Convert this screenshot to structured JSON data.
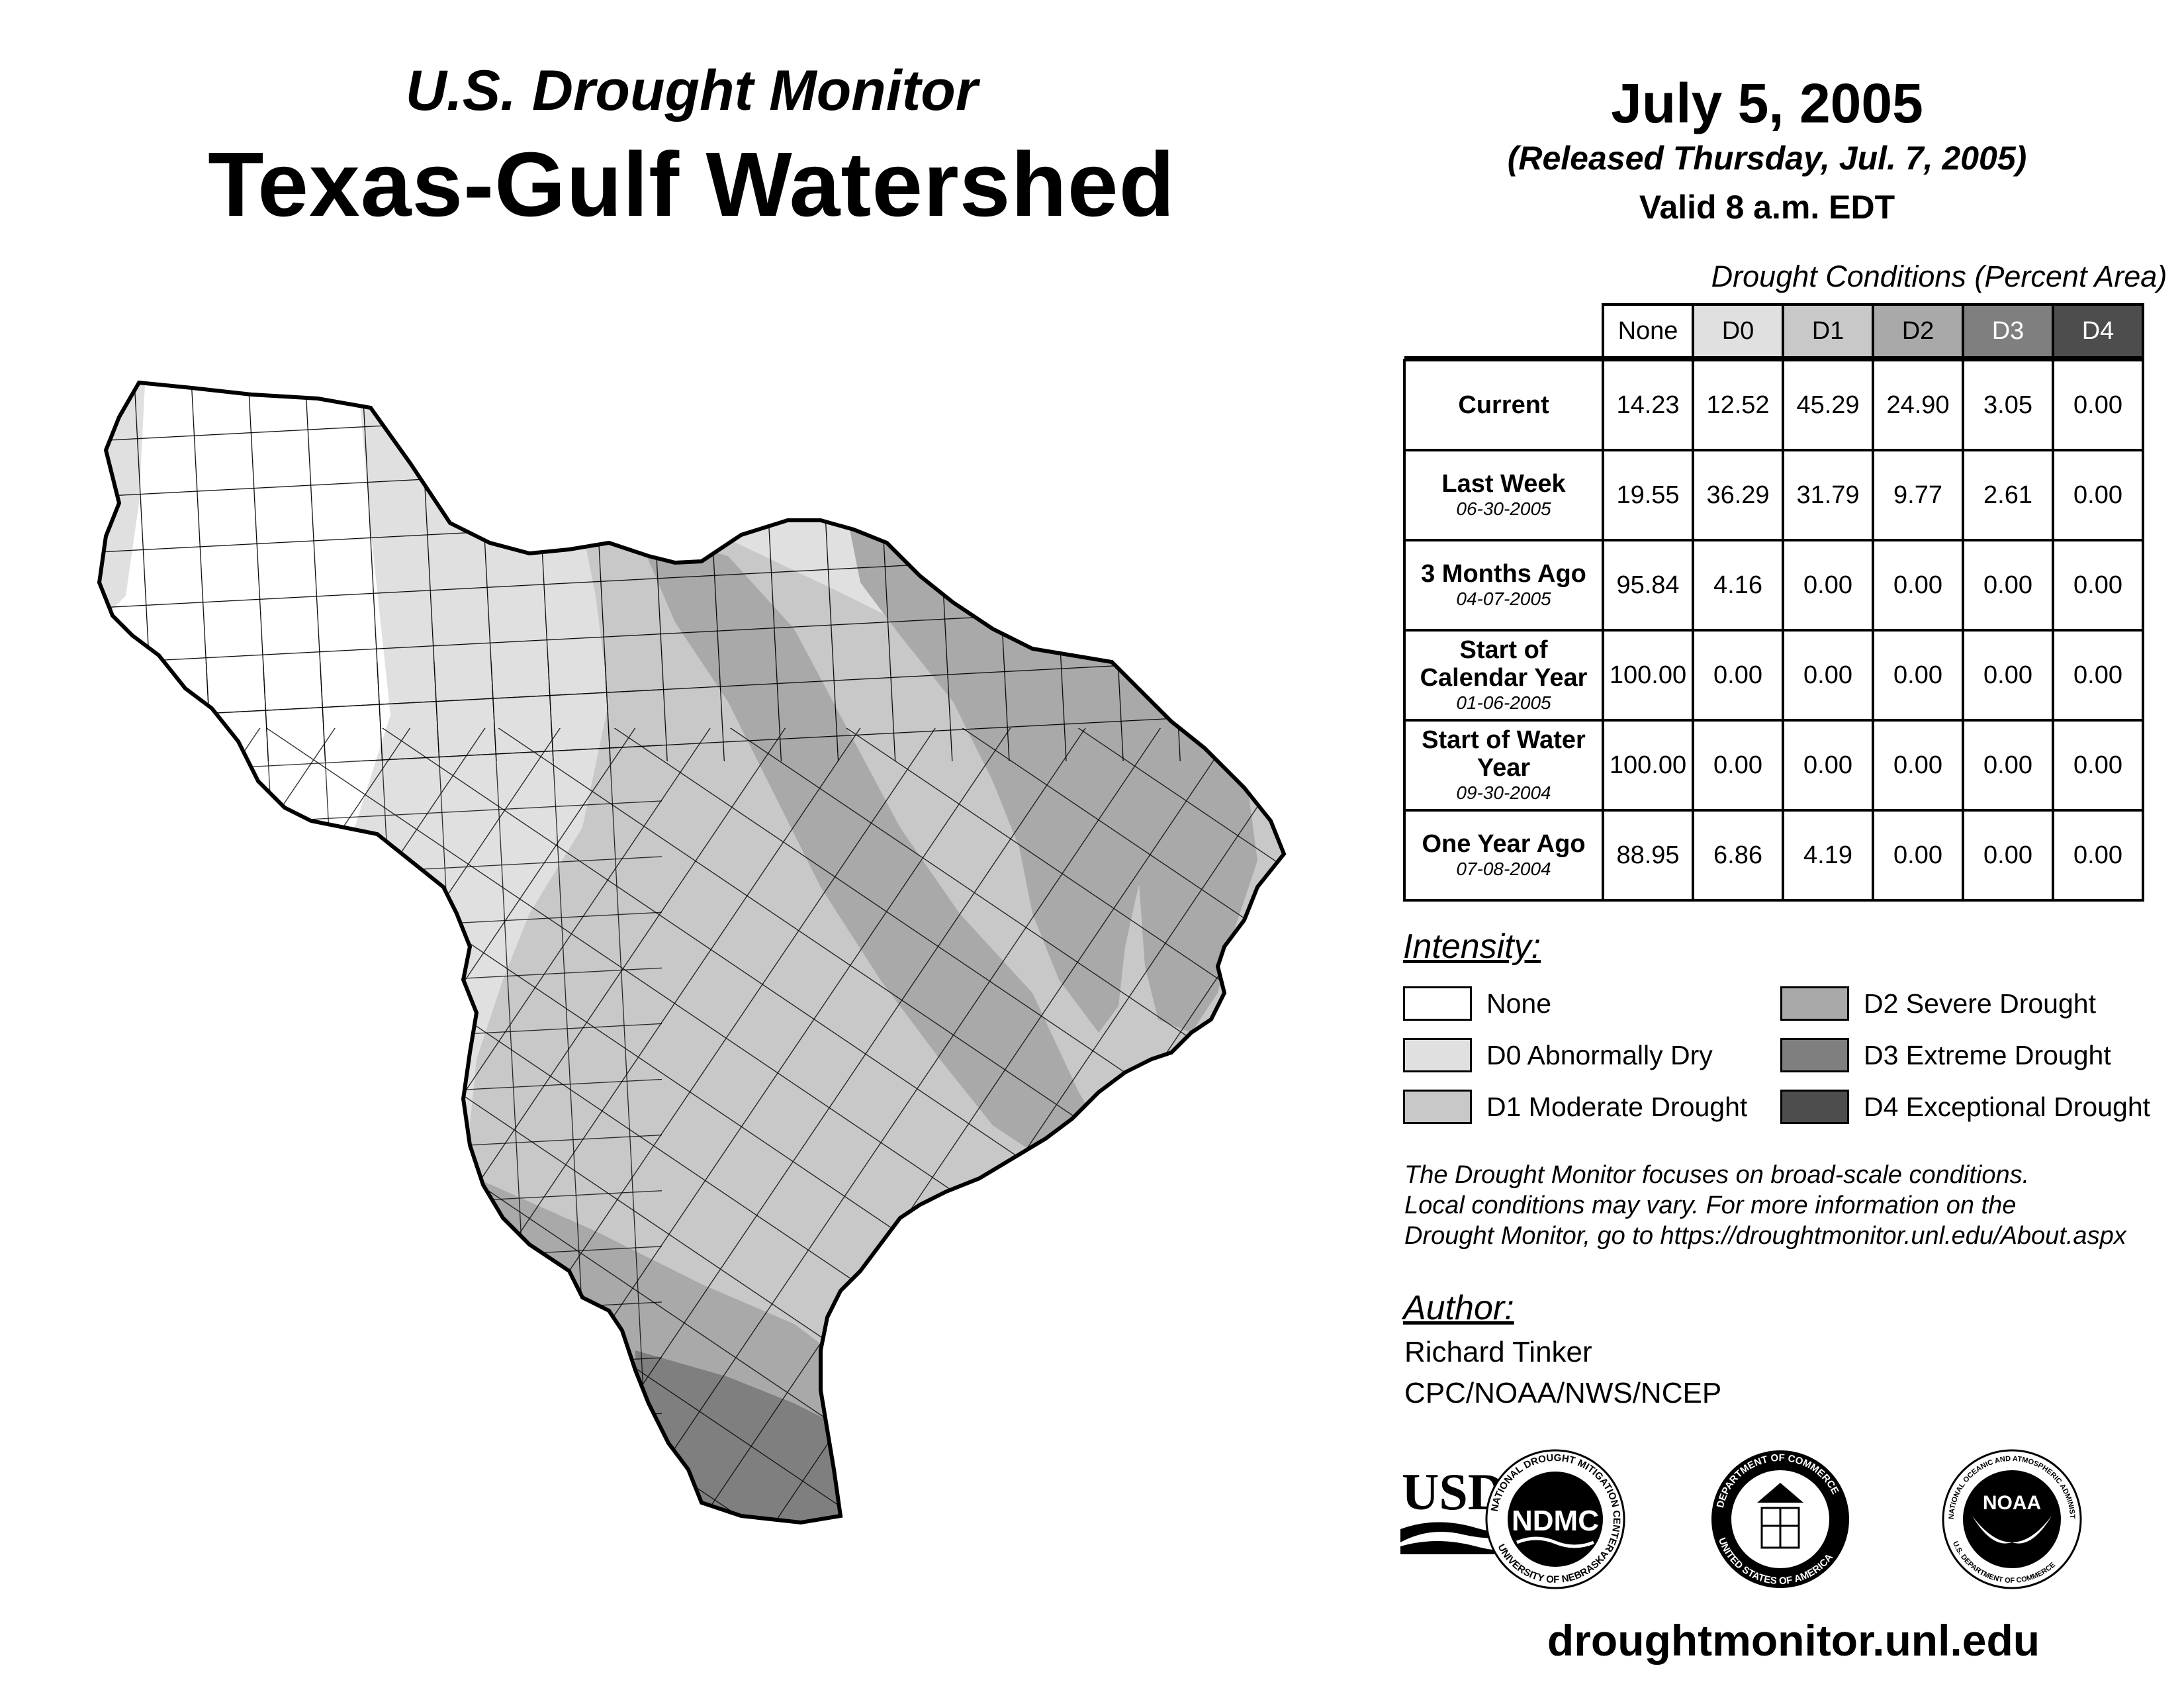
{
  "header": {
    "supertitle": "U.S. Drought Monitor",
    "title": "Texas-Gulf Watershed",
    "date": "July 5, 2005",
    "released": "(Released Thursday, Jul. 7, 2005)",
    "valid": "Valid 8 a.m. EDT"
  },
  "table": {
    "caption": "Drought Conditions (Percent Area)",
    "columns": [
      "None",
      "D0",
      "D1",
      "D2",
      "D3",
      "D4"
    ],
    "rows": [
      {
        "label": "Current",
        "date": "",
        "values": [
          "14.23",
          "12.52",
          "45.29",
          "24.90",
          "3.05",
          "0.00"
        ]
      },
      {
        "label": "Last Week",
        "date": "06-30-2005",
        "values": [
          "19.55",
          "36.29",
          "31.79",
          "9.77",
          "2.61",
          "0.00"
        ]
      },
      {
        "label": "3 Months Ago",
        "date": "04-07-2005",
        "values": [
          "95.84",
          "4.16",
          "0.00",
          "0.00",
          "0.00",
          "0.00"
        ]
      },
      {
        "label": "Start of Calendar Year",
        "date": "01-06-2005",
        "values": [
          "100.00",
          "0.00",
          "0.00",
          "0.00",
          "0.00",
          "0.00"
        ]
      },
      {
        "label": "Start of Water Year",
        "date": "09-30-2004",
        "values": [
          "100.00",
          "0.00",
          "0.00",
          "0.00",
          "0.00",
          "0.00"
        ]
      },
      {
        "label": "One Year Ago",
        "date": "07-08-2004",
        "values": [
          "88.95",
          "6.86",
          "4.19",
          "0.00",
          "0.00",
          "0.00"
        ]
      }
    ]
  },
  "legend": {
    "title": "Intensity:",
    "items": [
      {
        "label": "None",
        "color": "#ffffff"
      },
      {
        "label": "D0 Abnormally Dry",
        "color": "#e0e0e0"
      },
      {
        "label": "D1 Moderate Drought",
        "color": "#c8c8c8"
      },
      {
        "label": "D2 Severe Drought",
        "color": "#a9a9a9"
      },
      {
        "label": "D3 Extreme Drought",
        "color": "#7f7f7f"
      },
      {
        "label": "D4 Exceptional Drought",
        "color": "#4d4d4d"
      }
    ]
  },
  "header_colors": [
    "#ffffff",
    "#e0e0e0",
    "#c8c8c8",
    "#a9a9a9",
    "#7f7f7f",
    "#4d4d4d"
  ],
  "note": {
    "line1": "The Drought Monitor focuses on broad-scale conditions.",
    "line2": "Local conditions may vary. For more information on the",
    "line3": "Drought Monitor, go to https://droughtmonitor.unl.edu/About.aspx"
  },
  "author": {
    "title": "Author:",
    "name": "Richard Tinker",
    "org": "CPC/NOAA/NWS/NCEP"
  },
  "logos": {
    "usda": "USDA",
    "ndmc": "NDMC",
    "ndmc_ring_top": "NATIONAL DROUGHT MITIGATION CENTER",
    "ndmc_ring_bottom": "UNIVERSITY OF NEBRASKA",
    "doc_ring_top": "DEPARTMENT OF COMMERCE",
    "doc_ring_bottom": "UNITED STATES OF AMERICA",
    "noaa": "NOAA",
    "noaa_ring_top": "NATIONAL OCEANIC AND ATMOSPHERIC ADMINISTRATION",
    "noaa_ring_bottom": "U.S. DEPARTMENT OF COMMERCE"
  },
  "website": "droughtmonitor.unl.edu",
  "map": {
    "region": "Texas-Gulf Watershed",
    "categories_shown": [
      "None",
      "D0",
      "D1",
      "D2",
      "D3"
    ]
  }
}
